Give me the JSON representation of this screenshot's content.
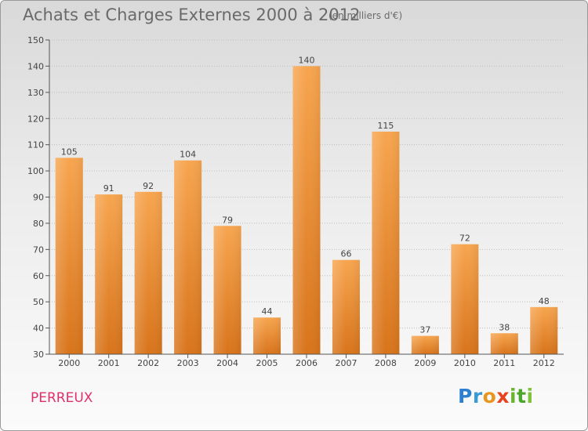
{
  "title": "Achats et Charges Externes 2000 à 2012",
  "subtitle": "(en milliers d'€)",
  "place": "PERREUX",
  "logo": {
    "letters": [
      {
        "char": "P",
        "color": "#2d7fd0"
      },
      {
        "char": "r",
        "color": "#3a9ad6"
      },
      {
        "char": "o",
        "color": "#e8961f"
      },
      {
        "char": "x",
        "color": "#e8431f"
      },
      {
        "char": "i",
        "color": "#6ab42e"
      },
      {
        "char": "t",
        "color": "#4ca62b"
      },
      {
        "char": "i",
        "color": "#7cc23a"
      }
    ]
  },
  "colors": {
    "bar_light": "#f7a54f",
    "bar_dark": "#d8741b",
    "axis": "#555555",
    "grid": "#bdbdbd",
    "place": "#e0306a"
  },
  "chart_data": {
    "type": "bar",
    "categories": [
      "2000",
      "2001",
      "2002",
      "2003",
      "2004",
      "2005",
      "2006",
      "2007",
      "2008",
      "2009",
      "2010",
      "2011",
      "2012"
    ],
    "values": [
      105,
      91,
      92,
      104,
      79,
      44,
      140,
      66,
      115,
      37,
      72,
      38,
      48
    ],
    "ylim": [
      30,
      150
    ],
    "yticks": [
      30,
      40,
      50,
      60,
      70,
      80,
      90,
      100,
      110,
      120,
      130,
      140,
      150
    ],
    "grid": "horizontal dotted"
  }
}
